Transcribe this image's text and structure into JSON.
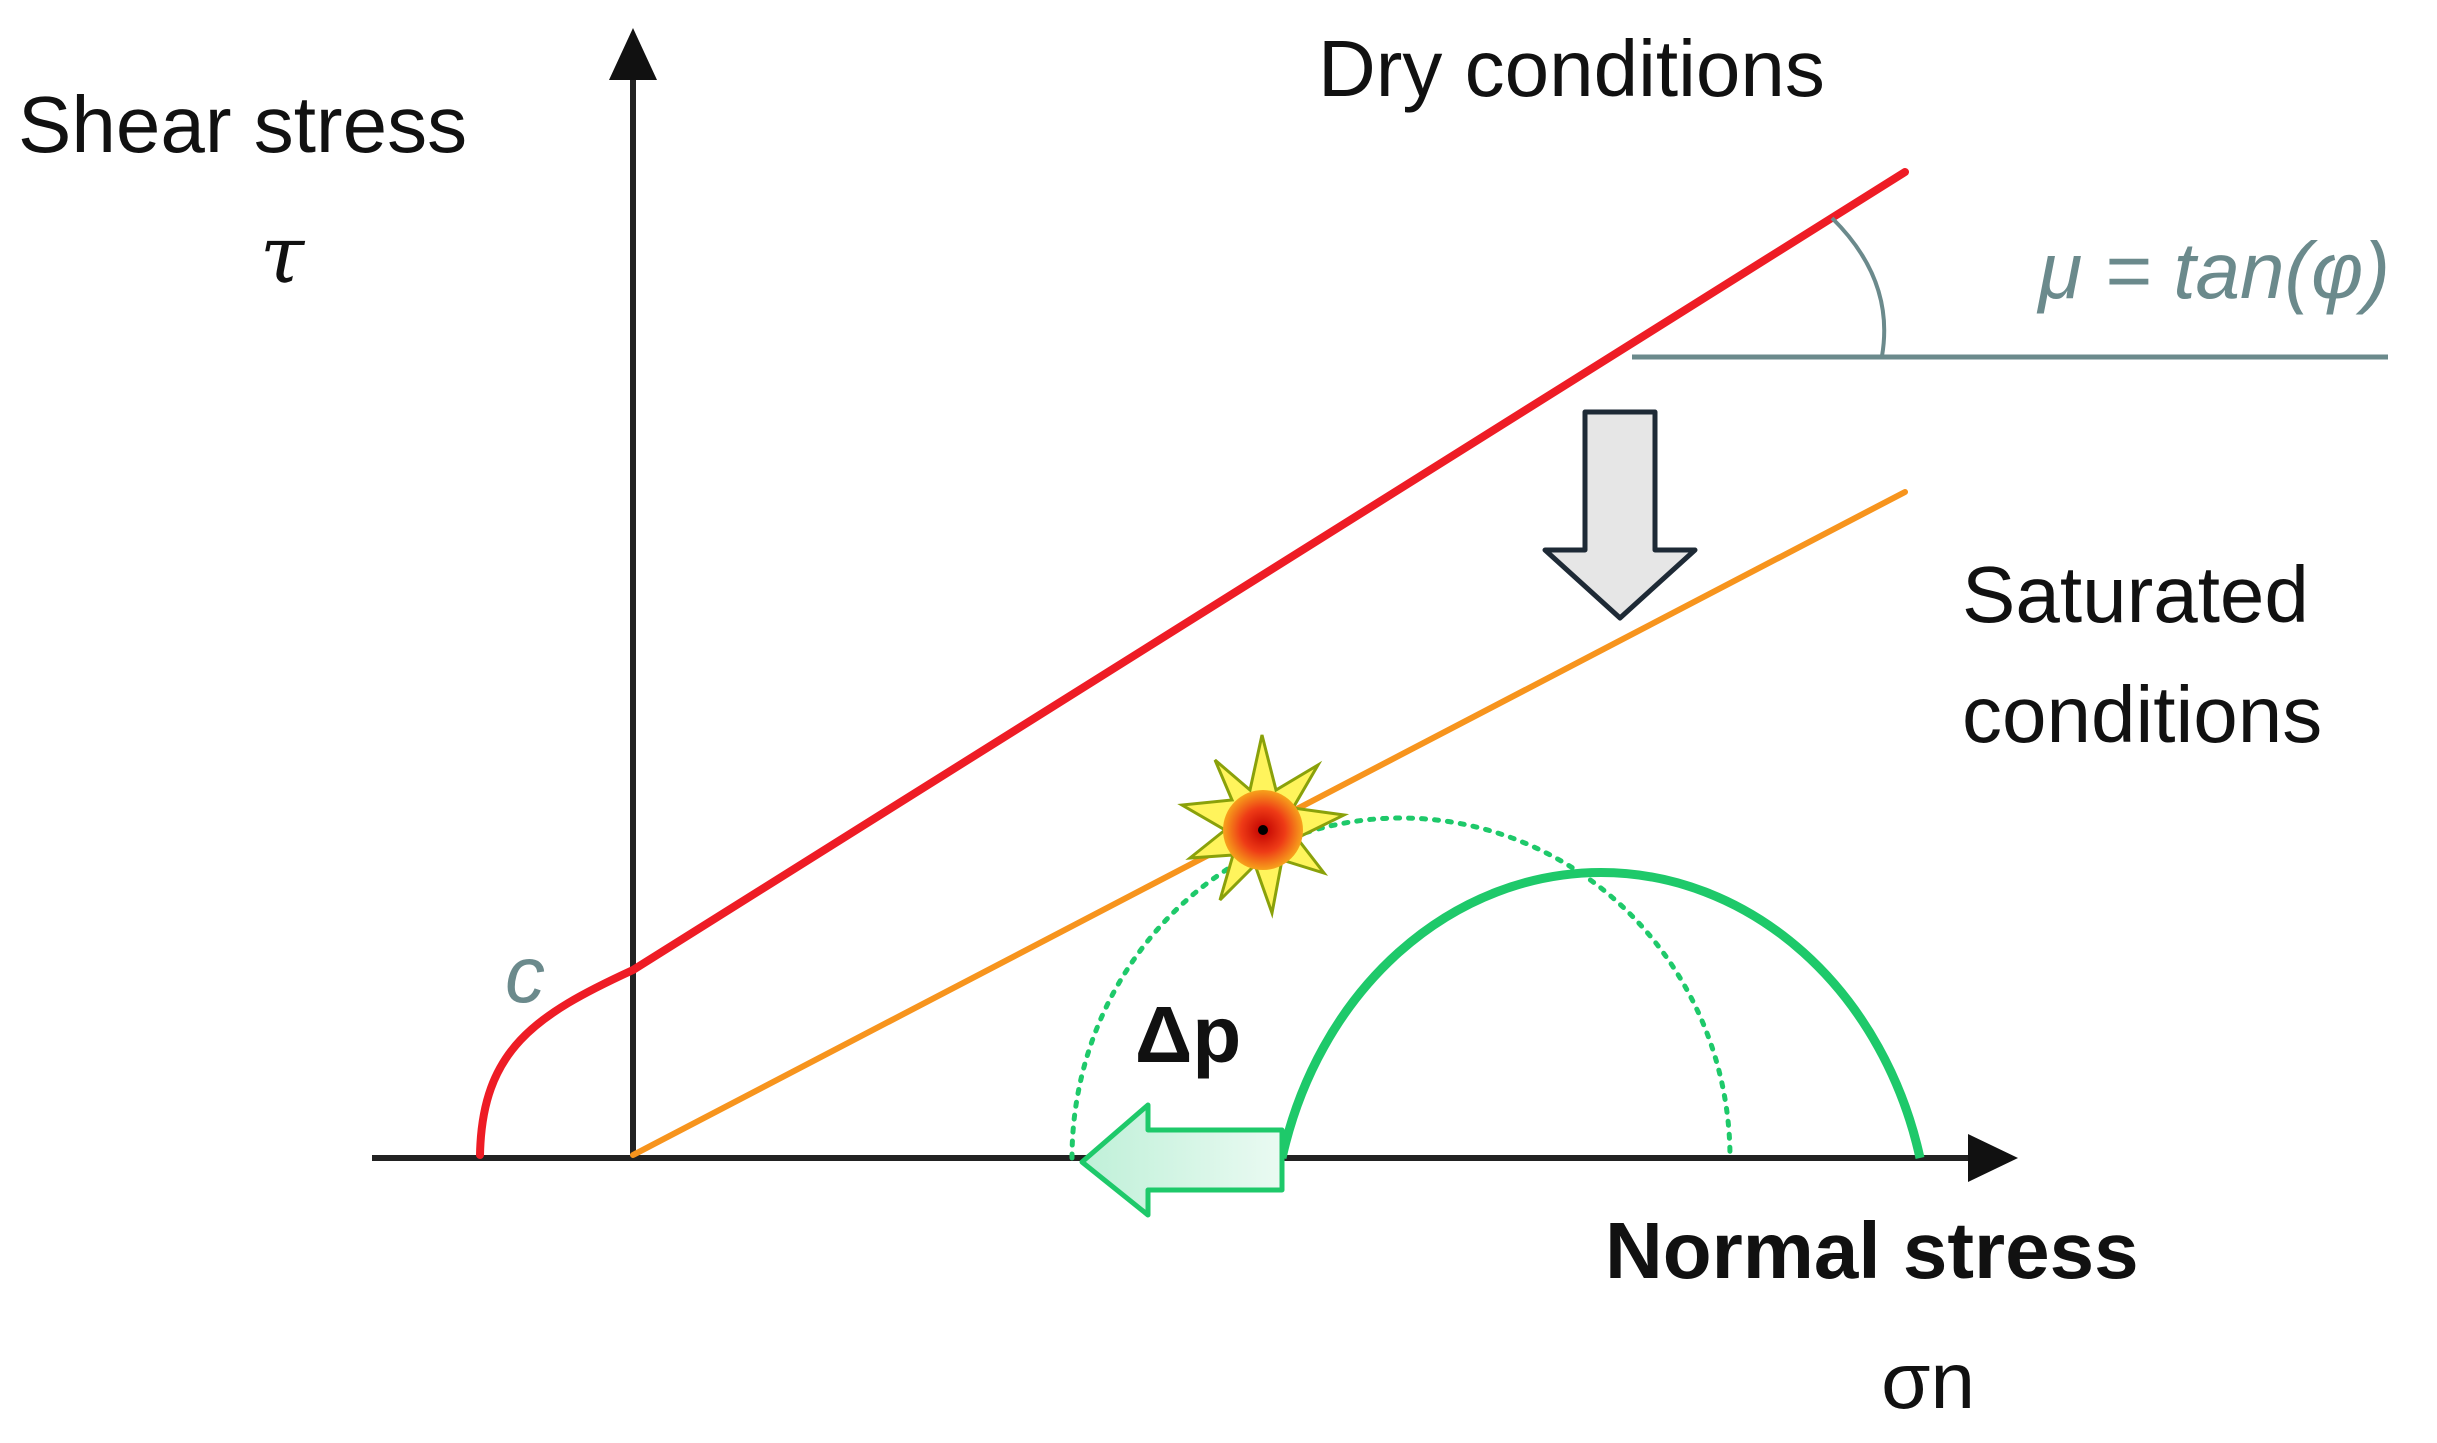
{
  "diagram": {
    "y_axis_title": "Shear stress",
    "y_axis_symbol": "τ",
    "x_axis_title": "Normal stress",
    "x_axis_symbol": "σn",
    "dry_label": "Dry conditions",
    "saturated_label_line1": "Saturated",
    "saturated_label_line2": "conditions",
    "friction_label": "μ = tan(φ)",
    "cohesion_label": "c",
    "pressure_label": "Δp",
    "colors": {
      "dry_envelope": "#ee1c25",
      "saturated_envelope": "#f7941d",
      "mohr_circle": "#1ec96a",
      "friction_annotation": "#6b8a8c",
      "axes": "#222222",
      "arrow_fill": "#e6e6e6",
      "arrow_stroke": "#1e2a36",
      "shift_arrow_fill": "#d6f5e6",
      "burst": "#e63312"
    },
    "icons": [
      "down-arrow-icon",
      "left-arrow-icon",
      "failure-burst-icon"
    ]
  }
}
